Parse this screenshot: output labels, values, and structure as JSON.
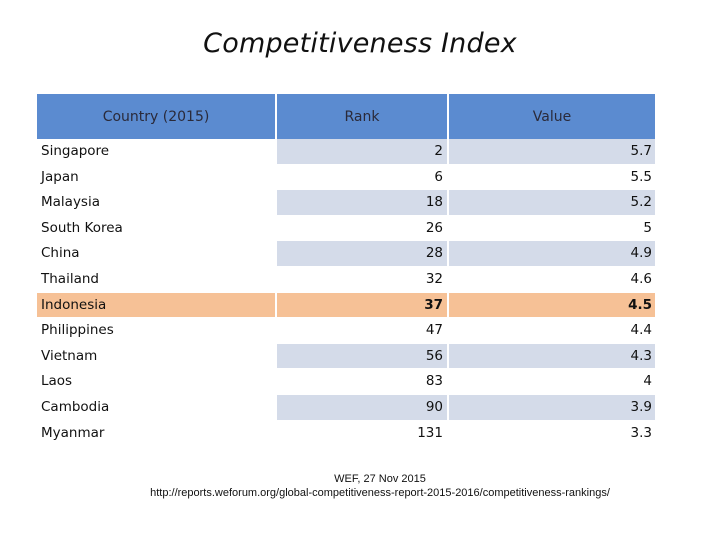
{
  "title": "Competitiveness Index",
  "headers": {
    "country": "Country (2015)",
    "rank": "Rank",
    "value": "Value"
  },
  "rows": [
    {
      "country": "Singapore",
      "rank": "2",
      "value": "5.7"
    },
    {
      "country": "Japan",
      "rank": "6",
      "value": "5.5"
    },
    {
      "country": "Malaysia",
      "rank": "18",
      "value": "5.2"
    },
    {
      "country": "South Korea",
      "rank": "26",
      "value": "5"
    },
    {
      "country": "China",
      "rank": "28",
      "value": "4.9"
    },
    {
      "country": "Thailand",
      "rank": "32",
      "value": "4.6"
    },
    {
      "country": "Indonesia",
      "rank": "37",
      "value": "4.5"
    },
    {
      "country": "Philippines",
      "rank": "47",
      "value": "4.4"
    },
    {
      "country": "Vietnam",
      "rank": "56",
      "value": "4.3"
    },
    {
      "country": "Laos",
      "rank": "83",
      "value": "4"
    },
    {
      "country": "Cambodia",
      "rank": "90",
      "value": "3.9"
    },
    {
      "country": "Myanmar",
      "rank": "131",
      "value": "3.3"
    }
  ],
  "highlight_country": "Indonesia",
  "source": {
    "line1": "WEF, 27 Nov 2015",
    "line2": "http://reports.weforum.org/global-competitiveness-report-2015-2016/competitiveness-rankings/"
  },
  "colors": {
    "header": "#5b8bd0",
    "shade": "#d4dbe9",
    "highlight": "#f6c196"
  }
}
